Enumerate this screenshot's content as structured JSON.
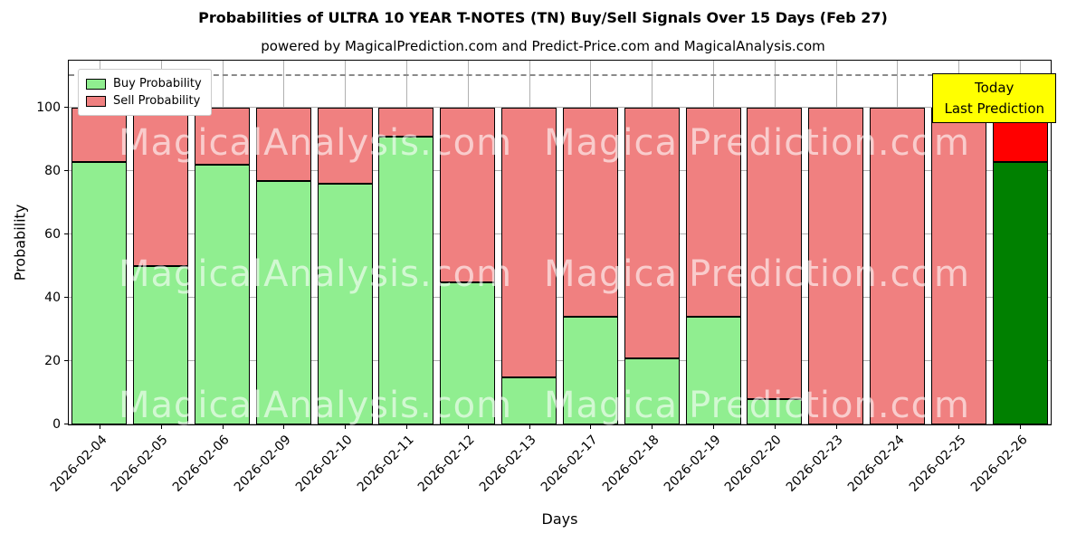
{
  "figure": {
    "title": "Probabilities of ULTRA 10 YEAR T-NOTES (TN) Buy/Sell Signals Over 15 Days (Feb 27)",
    "subtitle": "powered by MagicalPrediction.com and Predict-Price.com and MagicalAnalysis.com",
    "xlabel": "Days",
    "ylabel": "Probability"
  },
  "legend": {
    "items": [
      {
        "label": "Buy Probability",
        "color": "#90EE90"
      },
      {
        "label": "Sell Probability",
        "color": "#F08080"
      }
    ]
  },
  "annotation": {
    "lines": [
      "Today",
      "Last Prediction"
    ],
    "bg": "#FFFF00"
  },
  "watermarks": {
    "left": "MagicalAnalysis.com",
    "right": "MagicalPrediction.com"
  },
  "chart_data": {
    "type": "bar",
    "stacked": true,
    "title": "Probabilities of ULTRA 10 YEAR T-NOTES (TN) Buy/Sell Signals Over 15 Days (Feb 27)",
    "xlabel": "Days",
    "ylabel": "Probability",
    "categories": [
      "2026-02-04",
      "2026-02-05",
      "2026-02-06",
      "2026-02-09",
      "2026-02-10",
      "2026-02-11",
      "2026-02-12",
      "2026-02-13",
      "2026-02-17",
      "2026-02-18",
      "2026-02-19",
      "2026-02-20",
      "2026-02-23",
      "2026-02-24",
      "2026-02-25",
      "2026-02-26"
    ],
    "series": [
      {
        "name": "Buy Probability",
        "color": "#90EE90",
        "values": [
          83,
          50,
          82,
          77,
          76,
          91,
          45,
          15,
          34,
          21,
          34,
          8,
          0,
          0,
          0,
          83
        ]
      },
      {
        "name": "Sell Probability",
        "color": "#F08080",
        "values": [
          17,
          50,
          18,
          23,
          24,
          9,
          55,
          85,
          66,
          79,
          66,
          92,
          100,
          100,
          100,
          17
        ]
      }
    ],
    "highlight_last_bar": {
      "buy_color": "#008000",
      "sell_color": "#FF0000"
    },
    "ylim": [
      0,
      115
    ],
    "yticks": [
      0,
      20,
      40,
      60,
      80,
      100
    ],
    "dashed_line_y": 110,
    "grid": true,
    "legend_position": "upper left",
    "bar_edge_color": "#000000"
  }
}
